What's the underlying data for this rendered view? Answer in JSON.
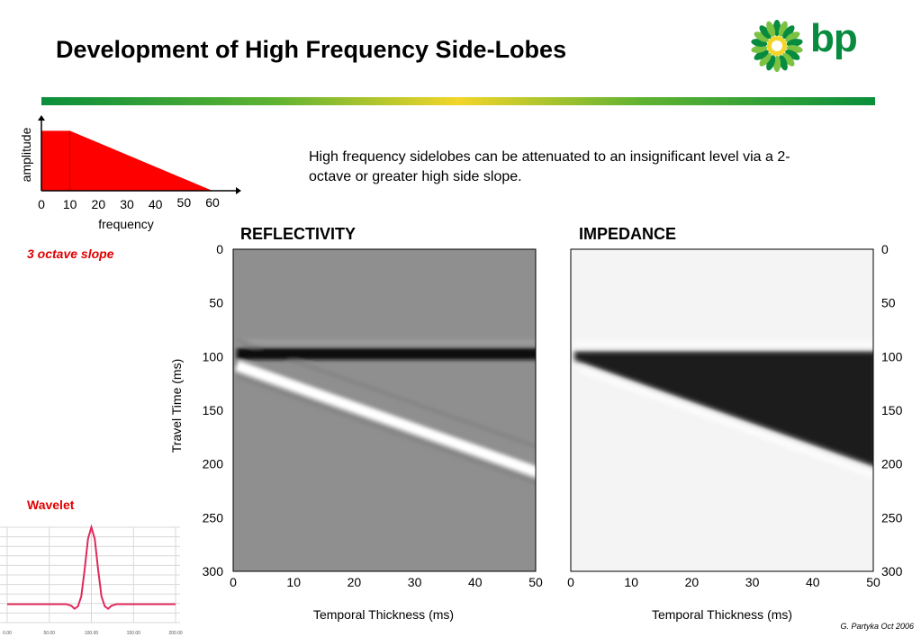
{
  "slide": {
    "title": "Development of High Frequency Side-Lobes",
    "logo_text": "bp",
    "body_text": "High frequency sidelobes can be attenuated to an insignificant level via a 2-octave or greater high side slope.",
    "slope_label": "3 octave slope",
    "wavelet_label": "Wavelet",
    "credit": "G. Partyka Oct 2006",
    "colors": {
      "accent_red": "#e00000",
      "bp_green": "#078b3e",
      "bp_yellow": "#f3d52a"
    }
  },
  "chart_data": [
    {
      "type": "area",
      "name": "amplitude-spectrum",
      "xlabel": "frequency",
      "ylabel": "amplitude",
      "x_ticks": [
        "0",
        "10",
        "20",
        "30",
        "40",
        "50",
        "60"
      ],
      "xlim": [
        0,
        60
      ],
      "ylim": [
        0,
        1.2
      ],
      "x": [
        0,
        10,
        60
      ],
      "y": [
        1,
        1,
        0
      ],
      "fill": "#ff0000"
    },
    {
      "type": "heatmap",
      "name": "reflectivity",
      "title": "REFLECTIVITY",
      "xlabel": "Temporal Thickness (ms)",
      "ylabel": "Travel Time (ms)",
      "x_ticks": [
        "0",
        "10",
        "20",
        "30",
        "40",
        "50"
      ],
      "y_ticks": [
        "0",
        "50",
        "100",
        "150",
        "200",
        "250",
        "300"
      ],
      "xlim": [
        0,
        50
      ],
      "ylim": [
        0,
        300
      ],
      "top_interface_ms": 100,
      "base_interface_ms": [
        100,
        200
      ]
    },
    {
      "type": "heatmap",
      "name": "impedance",
      "title": "IMPEDANCE",
      "xlabel": "Temporal Thickness (ms)",
      "x_ticks": [
        "0",
        "10",
        "20",
        "30",
        "40",
        "50"
      ],
      "y_ticks": [
        "0",
        "50",
        "100",
        "150",
        "200",
        "250",
        "300"
      ],
      "xlim": [
        0,
        50
      ],
      "ylim": [
        0,
        300
      ],
      "top_interface_ms": 100,
      "base_interface_ms": [
        100,
        200
      ]
    },
    {
      "type": "line",
      "name": "wavelet",
      "x_ticks": [
        "0.00",
        "50.00",
        "100.00",
        "150.00",
        "200.00"
      ],
      "xlim": [
        0,
        200
      ],
      "ylim": [
        -0.1,
        1
      ],
      "x": [
        0,
        70,
        76,
        80,
        84,
        88,
        92,
        96,
        100,
        104,
        108,
        112,
        116,
        120,
        124,
        130,
        200
      ],
      "y": [
        0,
        0,
        -0.02,
        -0.06,
        -0.03,
        0.1,
        0.45,
        0.85,
        1,
        0.85,
        0.45,
        0.1,
        -0.03,
        -0.06,
        -0.02,
        0,
        0
      ],
      "color": "#e0285a"
    }
  ]
}
